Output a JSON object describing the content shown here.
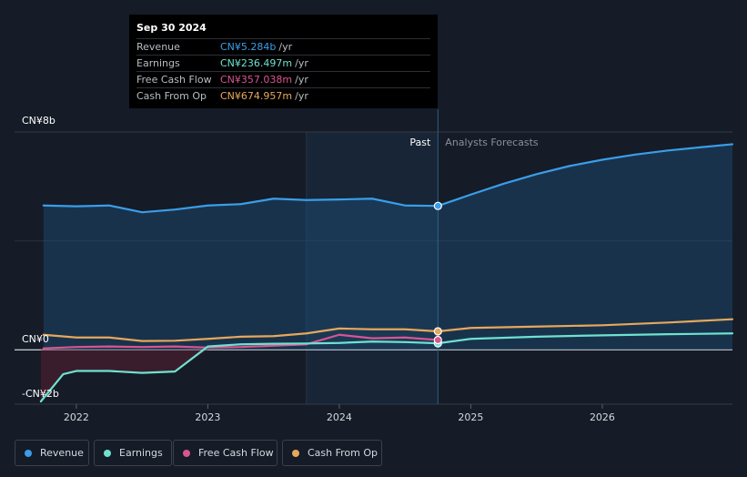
{
  "tooltip": {
    "date": "Sep 30 2024",
    "rows": [
      {
        "label": "Revenue",
        "value": "CN¥5.284b",
        "unit": "/yr",
        "color": "#3a9ee8"
      },
      {
        "label": "Earnings",
        "value": "CN¥236.497m",
        "unit": "/yr",
        "color": "#6ee2cf"
      },
      {
        "label": "Free Cash Flow",
        "value": "CN¥357.038m",
        "unit": "/yr",
        "color": "#d9558f"
      },
      {
        "label": "Cash From Op",
        "value": "CN¥674.957m",
        "unit": "/yr",
        "color": "#e6a85a"
      }
    ]
  },
  "legend": [
    {
      "label": "Revenue",
      "color": "#3a9ee8"
    },
    {
      "label": "Earnings",
      "color": "#6ee2cf"
    },
    {
      "label": "Free Cash Flow",
      "color": "#d9558f"
    },
    {
      "label": "Cash From Op",
      "color": "#e6a85a"
    }
  ],
  "chart_data": {
    "type": "line",
    "y_unit": "CN¥ billions",
    "ylim": [
      -2,
      8
    ],
    "y_tick_labels": [
      {
        "value": 8,
        "label": "CN¥8b"
      },
      {
        "value": 0,
        "label": "CN¥0"
      },
      {
        "value": -2,
        "label": "-CN¥2b"
      }
    ],
    "x_tick_labels": [
      {
        "value": 2022,
        "label": "2022"
      },
      {
        "value": 2023,
        "label": "2023"
      },
      {
        "value": 2024,
        "label": "2024"
      },
      {
        "value": 2025,
        "label": "2025"
      },
      {
        "value": 2026,
        "label": "2026"
      }
    ],
    "xlim": [
      2021.53,
      2026.99
    ],
    "past_label": "Past",
    "forecast_label": "Analysts Forecasts",
    "divider_x": 2024.75,
    "highlight_range": [
      2023.75,
      2024.75
    ],
    "grid": true,
    "series": [
      {
        "name": "Revenue",
        "color": "#3a9ee8",
        "fill": true,
        "x": [
          2021.75,
          2022.0,
          2022.25,
          2022.5,
          2022.75,
          2023.0,
          2023.25,
          2023.5,
          2023.75,
          2024.0,
          2024.25,
          2024.5,
          2024.75,
          2025.0,
          2025.25,
          2025.5,
          2025.75,
          2026.0,
          2026.25,
          2026.5,
          2026.75,
          2026.99
        ],
        "y": [
          5.3,
          5.27,
          5.3,
          5.05,
          5.15,
          5.3,
          5.35,
          5.55,
          5.5,
          5.52,
          5.55,
          5.3,
          5.284,
          5.7,
          6.1,
          6.45,
          6.75,
          6.98,
          7.17,
          7.32,
          7.44,
          7.55
        ]
      },
      {
        "name": "Earnings",
        "color": "#6ee2cf",
        "fill": false,
        "x": [
          2021.73,
          2021.9,
          2022.0,
          2022.25,
          2022.5,
          2022.75,
          2023.0,
          2023.25,
          2023.5,
          2023.75,
          2024.0,
          2024.25,
          2024.5,
          2024.75,
          2025.0,
          2025.5,
          2026.0,
          2026.5,
          2026.99
        ],
        "y": [
          -1.9,
          -0.9,
          -0.78,
          -0.78,
          -0.85,
          -0.8,
          0.12,
          0.2,
          0.22,
          0.23,
          0.25,
          0.3,
          0.28,
          0.236,
          0.4,
          0.48,
          0.53,
          0.57,
          0.6
        ]
      },
      {
        "name": "Free Cash Flow",
        "color": "#d9558f",
        "fill": false,
        "x": [
          2021.75,
          2022.0,
          2022.25,
          2022.5,
          2022.75,
          2023.0,
          2023.25,
          2023.5,
          2023.75,
          2024.0,
          2024.25,
          2024.5,
          2024.75
        ],
        "y": [
          0.05,
          0.1,
          0.12,
          0.1,
          0.12,
          0.08,
          0.1,
          0.15,
          0.2,
          0.55,
          0.42,
          0.45,
          0.357
        ]
      },
      {
        "name": "Cash From Op",
        "color": "#e6a85a",
        "fill": false,
        "x": [
          2021.75,
          2022.0,
          2022.25,
          2022.5,
          2022.75,
          2023.0,
          2023.25,
          2023.5,
          2023.75,
          2024.0,
          2024.25,
          2024.5,
          2024.75,
          2025.0,
          2025.5,
          2026.0,
          2026.5,
          2026.99
        ],
        "y": [
          0.55,
          0.45,
          0.45,
          0.32,
          0.33,
          0.4,
          0.48,
          0.5,
          0.6,
          0.78,
          0.75,
          0.75,
          0.675,
          0.8,
          0.85,
          0.9,
          1.0,
          1.12
        ]
      }
    ]
  }
}
